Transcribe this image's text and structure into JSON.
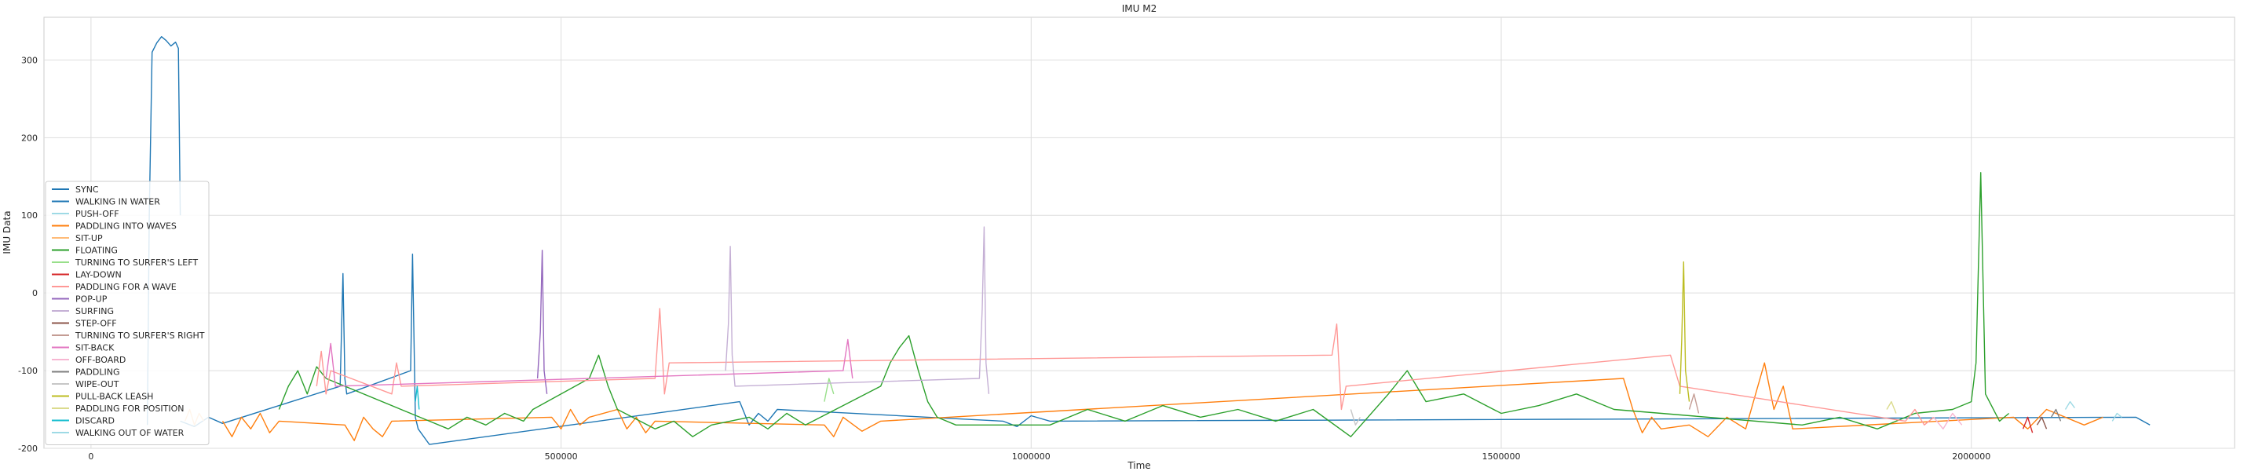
{
  "chart_data": {
    "type": "line",
    "title": "IMU M2",
    "xlabel": "Time",
    "ylabel": "IMU Data",
    "xlim": [
      -50000,
      2280000
    ],
    "ylim": [
      -200,
      355
    ],
    "xticks": [
      0,
      500000,
      1000000,
      1500000,
      2000000
    ],
    "xtick_labels": [
      "0",
      "500000",
      "1000000",
      "1500000",
      "2000000"
    ],
    "yticks": [
      -200,
      -100,
      0,
      100,
      200,
      300
    ],
    "ytick_labels": [
      "-200",
      "-100",
      "0",
      "100",
      "200",
      "300"
    ],
    "grid": true,
    "legend_position": "lower-left",
    "series": [
      {
        "name": "SYNC",
        "color": "#1f77b4",
        "x": [
          60000,
          62000,
          65000,
          70000,
          75000,
          80000,
          85000,
          90000,
          93000,
          95000
        ],
        "y": [
          -170,
          100,
          310,
          322,
          330,
          325,
          318,
          323,
          315,
          100
        ]
      },
      {
        "name": "WALKING IN WATER",
        "color": "#1f77b4",
        "x": [
          95000,
          110000,
          125000,
          140000,
          265000,
          268000,
          270000,
          272000,
          340000,
          342000,
          345000,
          348000,
          360000,
          690000,
          700000,
          710000,
          720000,
          730000,
          970000,
          985000,
          1000000,
          1020000,
          2175000,
          2190000
        ],
        "y": [
          -165,
          -172,
          -160,
          -168,
          -120,
          25,
          -110,
          -130,
          -100,
          50,
          -160,
          -175,
          -195,
          -140,
          -170,
          -155,
          -165,
          -150,
          -165,
          -172,
          -158,
          -165,
          -160,
          -170
        ]
      },
      {
        "name": "PUSH-OFF",
        "color": "#9edae5",
        "x": [
          2100000,
          2105000,
          2110000
        ],
        "y": [
          -150,
          -140,
          -148
        ]
      },
      {
        "name": "PADDLING INTO WAVES",
        "color": "#ff7f0e",
        "x": [
          140000,
          150000,
          160000,
          170000,
          180000,
          190000,
          200000,
          270000,
          280000,
          290000,
          300000,
          310000,
          320000,
          490000,
          500000,
          510000,
          520000,
          530000,
          560000,
          570000,
          580000,
          590000,
          600000,
          780000,
          790000,
          800000,
          820000,
          840000,
          1630000,
          1640000,
          1650000,
          1660000,
          1670000,
          1700000,
          1720000,
          1740000,
          1760000,
          1780000,
          1790000,
          1800000,
          1810000,
          2045000,
          2060000,
          2080000,
          2120000,
          2140000
        ],
        "y": [
          -165,
          -185,
          -160,
          -175,
          -155,
          -180,
          -165,
          -170,
          -190,
          -160,
          -175,
          -185,
          -165,
          -160,
          -175,
          -150,
          -170,
          -160,
          -150,
          -175,
          -160,
          -180,
          -165,
          -170,
          -185,
          -160,
          -178,
          -165,
          -110,
          -150,
          -180,
          -160,
          -175,
          -170,
          -185,
          -160,
          -175,
          -90,
          -150,
          -120,
          -175,
          -160,
          -175,
          -150,
          -170,
          -160
        ]
      },
      {
        "name": "SIT-UP",
        "color": "#ffbb78",
        "x": [
          100000,
          105000,
          110000,
          115000,
          120000
        ],
        "y": [
          -165,
          -150,
          -170,
          -155,
          -165
        ]
      },
      {
        "name": "FLOATING",
        "color": "#2ca02c",
        "x": [
          200000,
          210000,
          220000,
          230000,
          240000,
          250000,
          360000,
          380000,
          400000,
          420000,
          440000,
          460000,
          470000,
          530000,
          540000,
          550000,
          560000,
          600000,
          620000,
          640000,
          660000,
          700000,
          720000,
          740000,
          760000,
          840000,
          850000,
          860000,
          870000,
          880000,
          890000,
          900000,
          920000,
          1020000,
          1060000,
          1100000,
          1140000,
          1180000,
          1220000,
          1260000,
          1300000,
          1340000,
          1380000,
          1400000,
          1420000,
          1460000,
          1500000,
          1540000,
          1580000,
          1620000,
          1820000,
          1860000,
          1900000,
          1940000,
          1980000,
          2000000,
          2005000,
          2010000,
          2015000,
          2030000,
          2040000
        ],
        "y": [
          -150,
          -120,
          -100,
          -130,
          -95,
          -110,
          -165,
          -175,
          -160,
          -170,
          -155,
          -165,
          -150,
          -110,
          -80,
          -120,
          -150,
          -175,
          -165,
          -185,
          -170,
          -160,
          -175,
          -155,
          -170,
          -120,
          -90,
          -70,
          -55,
          -100,
          -140,
          -160,
          -170,
          -170,
          -150,
          -165,
          -145,
          -160,
          -150,
          -165,
          -150,
          -185,
          -130,
          -100,
          -140,
          -130,
          -155,
          -145,
          -130,
          -150,
          -170,
          -160,
          -175,
          -155,
          -150,
          -140,
          -90,
          155,
          -130,
          -165,
          -155
        ]
      },
      {
        "name": "TURNING TO SURFER'S LEFT",
        "color": "#98df8a",
        "x": [
          780000,
          785000,
          790000
        ],
        "y": [
          -140,
          -110,
          -130
        ]
      },
      {
        "name": "LAY-DOWN",
        "color": "#d62728",
        "x": [
          2055000,
          2060000,
          2065000
        ],
        "y": [
          -175,
          -160,
          -180
        ]
      },
      {
        "name": "PADDLING FOR A WAVE",
        "color": "#ff9896",
        "x": [
          240000,
          245000,
          250000,
          255000,
          320000,
          325000,
          330000,
          600000,
          605000,
          610000,
          615000,
          1320000,
          1325000,
          1330000,
          1335000,
          1680000,
          1685000,
          1690000,
          1930000,
          1940000,
          1950000,
          1960000
        ],
        "y": [
          -120,
          -75,
          -130,
          -100,
          -130,
          -90,
          -120,
          -110,
          -20,
          -130,
          -90,
          -80,
          -40,
          -150,
          -120,
          -80,
          -100,
          -120,
          -165,
          -150,
          -170,
          -160
        ]
      },
      {
        "name": "POP-UP",
        "color": "#9467bd",
        "x": [
          475000,
          478000,
          480000,
          482000,
          485000
        ],
        "y": [
          -110,
          -50,
          55,
          -100,
          -130
        ]
      },
      {
        "name": "SURFING",
        "color": "#c5b0d5",
        "x": [
          675000,
          678000,
          680000,
          682000,
          685000,
          945000,
          948000,
          950000,
          952000,
          955000
        ],
        "y": [
          -100,
          -40,
          60,
          -80,
          -120,
          -110,
          -20,
          85,
          -90,
          -130
        ]
      },
      {
        "name": "STEP-OFF",
        "color": "#8c564b",
        "x": [
          2070000,
          2075000,
          2080000
        ],
        "y": [
          -170,
          -160,
          -175
        ]
      },
      {
        "name": "TURNING TO SURFER'S RIGHT",
        "color": "#c49c94",
        "x": [
          1700000,
          1705000,
          1710000
        ],
        "y": [
          -150,
          -130,
          -155
        ]
      },
      {
        "name": "SIT-BACK",
        "color": "#e377c2",
        "x": [
          250000,
          255000,
          260000,
          800000,
          805000,
          810000
        ],
        "y": [
          -110,
          -65,
          -120,
          -100,
          -60,
          -110
        ]
      },
      {
        "name": "OFF-BOARD",
        "color": "#f7b6d2",
        "x": [
          1960000,
          1970000,
          1980000,
          1990000
        ],
        "y": [
          -160,
          -175,
          -155,
          -170
        ]
      },
      {
        "name": "PADDLING",
        "color": "#7f7f7f",
        "x": [
          2085000,
          2090000,
          2095000
        ],
        "y": [
          -160,
          -150,
          -165
        ]
      },
      {
        "name": "WIPE-OUT",
        "color": "#c7c7c7",
        "x": [
          1340000,
          1345000,
          1350000
        ],
        "y": [
          -150,
          -170,
          -160
        ]
      },
      {
        "name": "PULL-BACK LEASH",
        "color": "#bcbd22",
        "x": [
          1690000,
          1692000,
          1694000,
          1696000,
          1700000
        ],
        "y": [
          -130,
          -60,
          40,
          -100,
          -140
        ]
      },
      {
        "name": "PADDLING FOR POSITION",
        "color": "#dbdb8d",
        "x": [
          1910000,
          1915000,
          1920000
        ],
        "y": [
          -150,
          -140,
          -155
        ]
      },
      {
        "name": "DISCARD",
        "color": "#17becf",
        "x": [
          345000,
          347000,
          349000
        ],
        "y": [
          -140,
          -120,
          -150
        ]
      },
      {
        "name": "WALKING OUT OF WATER",
        "color": "#9edae5",
        "x": [
          2150000,
          2155000,
          2160000
        ],
        "y": [
          -165,
          -155,
          -160
        ]
      }
    ]
  }
}
